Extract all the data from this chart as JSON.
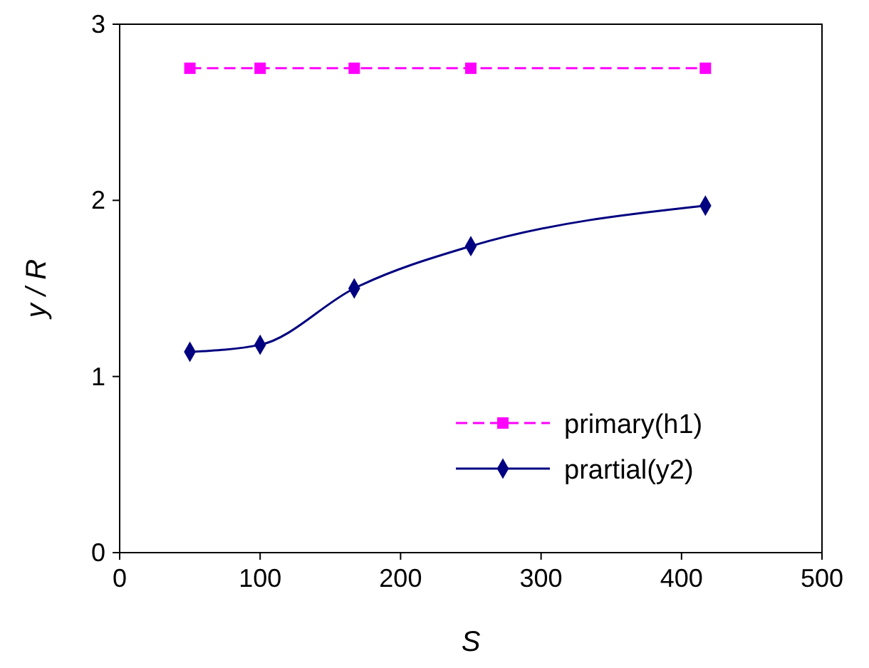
{
  "chart_data": {
    "type": "line",
    "xlabel": "S",
    "ylabel": "y / R",
    "xlim": [
      0,
      500
    ],
    "xticks": [
      0,
      100,
      200,
      300,
      400,
      500
    ],
    "ylim": [
      0,
      3
    ],
    "yticks": [
      0,
      1,
      2,
      3
    ],
    "grid": false,
    "legend": "bottom right",
    "series": [
      {
        "name": "primary(h1)",
        "color": "#ff00ff",
        "marker": "square",
        "line_style": "dashed",
        "x": [
          50,
          100,
          167,
          250,
          417
        ],
        "values": [
          2.75,
          2.75,
          2.75,
          2.75,
          2.75
        ]
      },
      {
        "name": "prartial(y2)",
        "color": "#000080",
        "marker": "diamond",
        "line_style": "solid",
        "x": [
          50,
          100,
          167,
          250,
          417
        ],
        "values": [
          1.14,
          1.18,
          1.5,
          1.74,
          1.97
        ]
      }
    ]
  }
}
